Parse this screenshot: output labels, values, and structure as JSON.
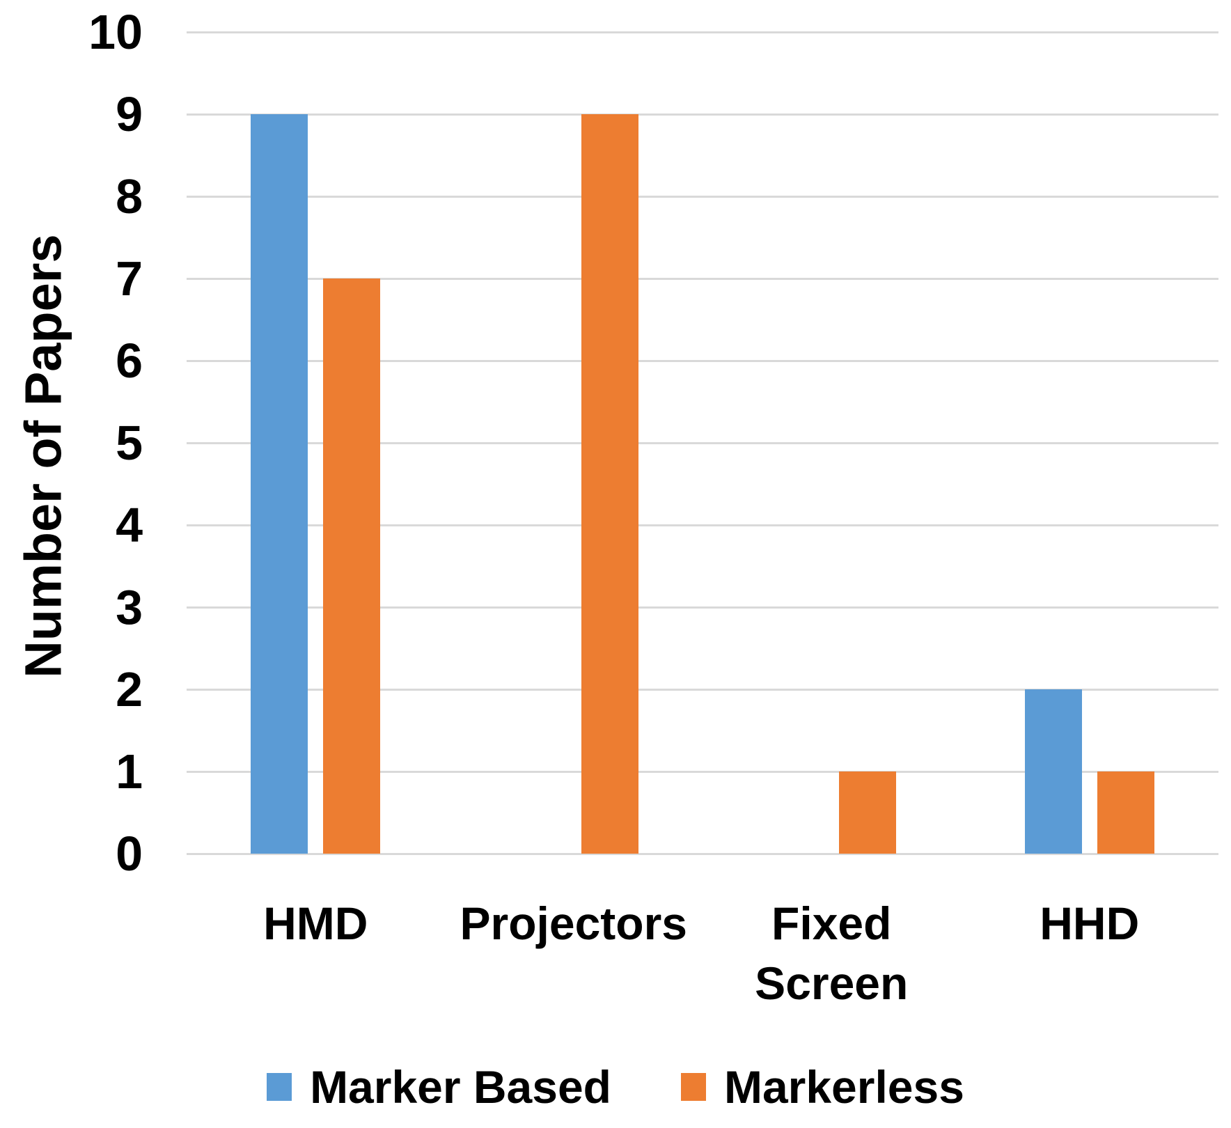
{
  "chart_data": {
    "type": "bar",
    "categories": [
      "HMD",
      "Projectors",
      "Fixed Screen",
      "HHD"
    ],
    "series": [
      {
        "name": "Marker Based",
        "color": "#5B9BD5",
        "values": [
          9,
          0,
          0,
          2
        ]
      },
      {
        "name": "Markerless",
        "color": "#ED7D31",
        "values": [
          7,
          9,
          1,
          1
        ]
      }
    ],
    "title": "",
    "xlabel": "",
    "ylabel": "Number of Papers",
    "ylim": [
      0,
      10
    ],
    "ytick_step": 1,
    "grid": "horizontal",
    "legend_position": "bottom-center"
  },
  "y_axis": {
    "title": "Number of Papers",
    "ticks": [
      0,
      1,
      2,
      3,
      4,
      5,
      6,
      7,
      8,
      9,
      10
    ]
  },
  "x_axis": {
    "labels": [
      {
        "category": "HMD",
        "lines": [
          "HMD"
        ]
      },
      {
        "category": "Projectors",
        "lines": [
          "Projectors"
        ]
      },
      {
        "category": "Fixed Screen",
        "lines": [
          "Fixed",
          "Screen"
        ]
      },
      {
        "category": "HHD",
        "lines": [
          "HHD"
        ]
      }
    ]
  },
  "legend": {
    "items": [
      {
        "label": "Marker Based",
        "color": "#5B9BD5"
      },
      {
        "label": "Markerless",
        "color": "#ED7D31"
      }
    ]
  },
  "style": {
    "gridline_color": "#D9D9D9",
    "text_color": "#000000",
    "background": "#FFFFFF"
  }
}
